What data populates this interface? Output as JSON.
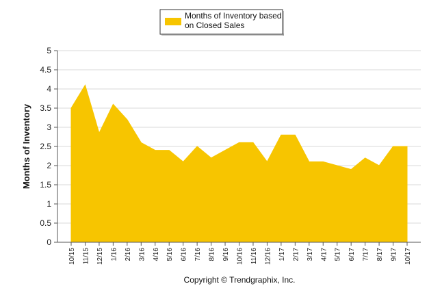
{
  "chart_data": {
    "type": "area",
    "title": "",
    "xlabel": "",
    "ylabel": "Months of Inventory",
    "ylim": [
      0,
      5
    ],
    "yticks": [
      "0",
      "0.5",
      "1",
      "1.5",
      "2",
      "2.5",
      "3",
      "3.5",
      "4",
      "4.5",
      "5"
    ],
    "categories": [
      "10/15",
      "11/15",
      "12/15",
      "1/16",
      "2/16",
      "3/16",
      "4/16",
      "5/16",
      "6/16",
      "7/16",
      "8/16",
      "9/16",
      "10/16",
      "11/16",
      "12/16",
      "1/17",
      "2/17",
      "3/17",
      "4/17",
      "5/17",
      "6/17",
      "7/17",
      "8/17",
      "9/17",
      "10/17"
    ],
    "series": [
      {
        "name": "Months of Inventory based on Closed Sales",
        "legend_lines": [
          "Months of Inventory based",
          "on Closed Sales"
        ],
        "color": "#f7c500",
        "values": [
          3.5,
          4.1,
          2.85,
          3.6,
          3.2,
          2.6,
          2.4,
          2.4,
          2.1,
          2.5,
          2.2,
          2.4,
          2.6,
          2.6,
          2.1,
          2.8,
          2.8,
          2.1,
          2.1,
          2.0,
          1.9,
          2.2,
          2.0,
          2.5,
          2.5
        ]
      }
    ],
    "legend_position": "top-center",
    "grid": true
  },
  "footer": {
    "copyright": "Copyright © Trendgraphix, Inc."
  }
}
